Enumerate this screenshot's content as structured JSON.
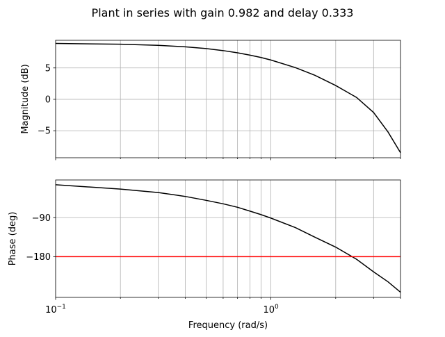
{
  "chart_data": [
    {
      "type": "line",
      "panel": "magnitude",
      "title": "Plant in series with gain 0.982 and delay 0.333",
      "xlabel": "",
      "ylabel": "Magnitude (dB)",
      "xscale": "log",
      "xlim": [
        0.1,
        4.0
      ],
      "ylim": [
        -9.3,
        9.4
      ],
      "yticks": [
        5,
        0,
        -5
      ],
      "ytick_labels": [
        "5",
        "0",
        "−5"
      ],
      "grid": true,
      "series": [
        {
          "color": "#000000",
          "x": [
            0.1,
            0.2,
            0.3,
            0.4,
            0.5,
            0.6,
            0.7,
            0.8,
            0.9,
            1.0,
            1.3,
            1.6,
            2.0,
            2.5,
            3.0,
            3.5,
            4.0
          ],
          "y": [
            8.9,
            8.78,
            8.6,
            8.36,
            8.08,
            7.76,
            7.41,
            7.04,
            6.66,
            6.26,
            5.05,
            3.83,
            2.2,
            0.3,
            -2.1,
            -5.2,
            -8.5
          ]
        }
      ]
    },
    {
      "type": "line",
      "panel": "phase",
      "xlabel": "Frequency (rad/s)",
      "ylabel": "Phase (deg)",
      "xscale": "log",
      "xlim": [
        0.1,
        4.0
      ],
      "ylim": [
        -274,
        -3
      ],
      "yticks": [
        -90,
        -180
      ],
      "ytick_labels": [
        "−90",
        "−180"
      ],
      "xticks": [
        0.1,
        1.0
      ],
      "xtick_labels": [
        {
          "base": "10",
          "exp": "−1"
        },
        {
          "base": "10",
          "exp": "0"
        }
      ],
      "grid": true,
      "series": [
        {
          "color": "#000000",
          "x": [
            0.1,
            0.2,
            0.3,
            0.4,
            0.5,
            0.6,
            0.7,
            0.8,
            0.9,
            1.0,
            1.3,
            1.6,
            2.0,
            2.5,
            3.0,
            3.5,
            4.0
          ],
          "y": [
            -14,
            -24,
            -32,
            -41,
            -50,
            -58,
            -66,
            -75,
            -83,
            -91,
            -113,
            -135,
            -158,
            -186,
            -215,
            -238,
            -262
          ]
        },
        {
          "color": "#ff0000",
          "x": [
            0.1,
            4.0
          ],
          "y": [
            -180,
            -180
          ]
        }
      ]
    }
  ]
}
